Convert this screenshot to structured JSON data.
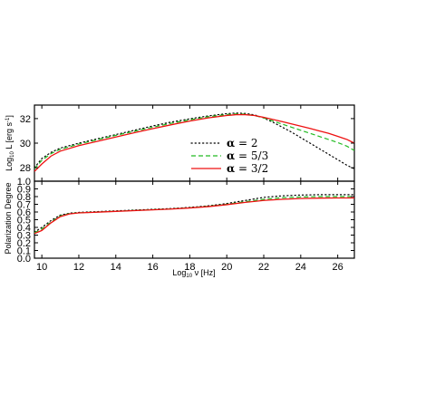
{
  "chart_data": [
    {
      "type": "line",
      "panel": "top",
      "ylabel": "Log10 L [erg s-1]",
      "ylabel_main": "Log",
      "ylabel_sub": "10",
      "ylabel_rest": " L [erg s",
      "ylabel_sup": "-1",
      "ylabel_close": "]",
      "xlim": [
        9.6,
        26.9
      ],
      "ylim": [
        26.9,
        33.1
      ],
      "yticks": [
        28,
        30,
        32
      ],
      "ytick_labels": [
        "28",
        "30",
        "32"
      ],
      "legend_placement": "right",
      "series": [
        {
          "name": "α = 2",
          "name_greek": "α",
          "name_rest": " = 2",
          "color": "#000000",
          "style": "dotted",
          "x": [
            9.6,
            10,
            10.5,
            11,
            12,
            13,
            14,
            15,
            16,
            17,
            18,
            19,
            20,
            20.5,
            21,
            21.5,
            22,
            22.5,
            23,
            23.5,
            24,
            24.5,
            25,
            25.5,
            26,
            26.5,
            26.9
          ],
          "y": [
            28.0,
            28.75,
            29.25,
            29.6,
            30.0,
            30.35,
            30.7,
            31.05,
            31.4,
            31.72,
            31.98,
            32.22,
            32.4,
            32.45,
            32.42,
            32.3,
            32.05,
            31.7,
            31.3,
            30.9,
            30.45,
            30.0,
            29.55,
            29.1,
            28.65,
            28.2,
            27.9
          ]
        },
        {
          "name": "α = 5/3",
          "name_greek": "α",
          "name_rest": " = 5/3",
          "color": "#22bb22",
          "style": "dashed",
          "x": [
            9.6,
            10,
            10.5,
            11,
            12,
            13,
            14,
            15,
            16,
            17,
            18,
            19,
            20,
            20.5,
            21,
            21.5,
            22,
            22.5,
            23,
            23.5,
            24,
            24.5,
            25,
            25.5,
            26,
            26.5,
            26.9
          ],
          "y": [
            27.9,
            28.6,
            29.15,
            29.5,
            29.92,
            30.28,
            30.63,
            30.97,
            31.3,
            31.62,
            31.9,
            32.15,
            32.33,
            32.38,
            32.36,
            32.25,
            32.05,
            31.8,
            31.55,
            31.3,
            31.05,
            30.8,
            30.55,
            30.3,
            30.05,
            29.75,
            29.4
          ]
        },
        {
          "name": "α = 3/2",
          "name_greek": "α",
          "name_rest": " = 3/2",
          "color": "#ee1111",
          "style": "solid",
          "x": [
            9.6,
            10,
            10.5,
            11,
            12,
            13,
            14,
            15,
            16,
            17,
            18,
            19,
            20,
            20.5,
            21,
            21.5,
            22,
            22.5,
            23,
            23.5,
            24,
            24.5,
            25,
            25.5,
            26,
            26.5,
            26.9
          ],
          "y": [
            27.7,
            28.3,
            28.95,
            29.35,
            29.8,
            30.15,
            30.5,
            30.85,
            31.18,
            31.5,
            31.8,
            32.06,
            32.25,
            32.32,
            32.32,
            32.25,
            32.1,
            31.93,
            31.75,
            31.57,
            31.38,
            31.2,
            31.0,
            30.8,
            30.55,
            30.3,
            30.0
          ]
        }
      ]
    },
    {
      "type": "line",
      "panel": "bottom",
      "xlabel": "Log10 ν [Hz]",
      "xlabel_main": "Log",
      "xlabel_sub": "10",
      "xlabel_rest": " ν [Hz]",
      "ylabel": "Polarization Degree",
      "xlim": [
        9.6,
        26.9
      ],
      "ylim": [
        0.0,
        1.0
      ],
      "xticks": [
        10,
        12,
        14,
        16,
        18,
        20,
        22,
        24,
        26
      ],
      "xtick_labels": [
        "10",
        "12",
        "14",
        "16",
        "18",
        "20",
        "22",
        "24",
        "26"
      ],
      "yticks": [
        0.0,
        0.1,
        0.2,
        0.3,
        0.4,
        0.5,
        0.6,
        0.7,
        0.8,
        0.9,
        1.0
      ],
      "ytick_labels": [
        "0.0",
        "0.1",
        "0.2",
        "0.3",
        "0.4",
        "0.5",
        "0.6",
        "0.7",
        "0.8",
        "0.9",
        "1.0"
      ],
      "series": [
        {
          "color": "#000000",
          "style": "dotted",
          "x": [
            9.6,
            10,
            10.5,
            11,
            11.5,
            12,
            13,
            14,
            15,
            16,
            17,
            18,
            19,
            20,
            21,
            22,
            23,
            24,
            25,
            26,
            26.9
          ],
          "y": [
            0.34,
            0.4,
            0.49,
            0.56,
            0.585,
            0.595,
            0.605,
            0.615,
            0.625,
            0.635,
            0.645,
            0.66,
            0.68,
            0.71,
            0.75,
            0.79,
            0.81,
            0.82,
            0.825,
            0.825,
            0.825
          ]
        },
        {
          "color": "#22bb22",
          "style": "dashed",
          "x": [
            9.6,
            10,
            10.5,
            11,
            11.5,
            12,
            13,
            14,
            15,
            16,
            17,
            18,
            19,
            20,
            21,
            22,
            23,
            24,
            25,
            26,
            26.9
          ],
          "y": [
            0.33,
            0.38,
            0.47,
            0.55,
            0.58,
            0.59,
            0.6,
            0.61,
            0.62,
            0.63,
            0.64,
            0.655,
            0.675,
            0.7,
            0.735,
            0.765,
            0.785,
            0.795,
            0.8,
            0.8,
            0.8
          ]
        },
        {
          "color": "#ee1111",
          "style": "solid",
          "x": [
            9.6,
            10,
            10.5,
            11,
            11.5,
            12,
            13,
            14,
            15,
            16,
            17,
            18,
            19,
            20,
            21,
            22,
            23,
            24,
            25,
            26,
            26.9
          ],
          "y": [
            0.32,
            0.36,
            0.46,
            0.54,
            0.575,
            0.588,
            0.598,
            0.608,
            0.618,
            0.628,
            0.638,
            0.652,
            0.67,
            0.695,
            0.725,
            0.75,
            0.765,
            0.775,
            0.78,
            0.782,
            0.782
          ]
        }
      ]
    }
  ]
}
